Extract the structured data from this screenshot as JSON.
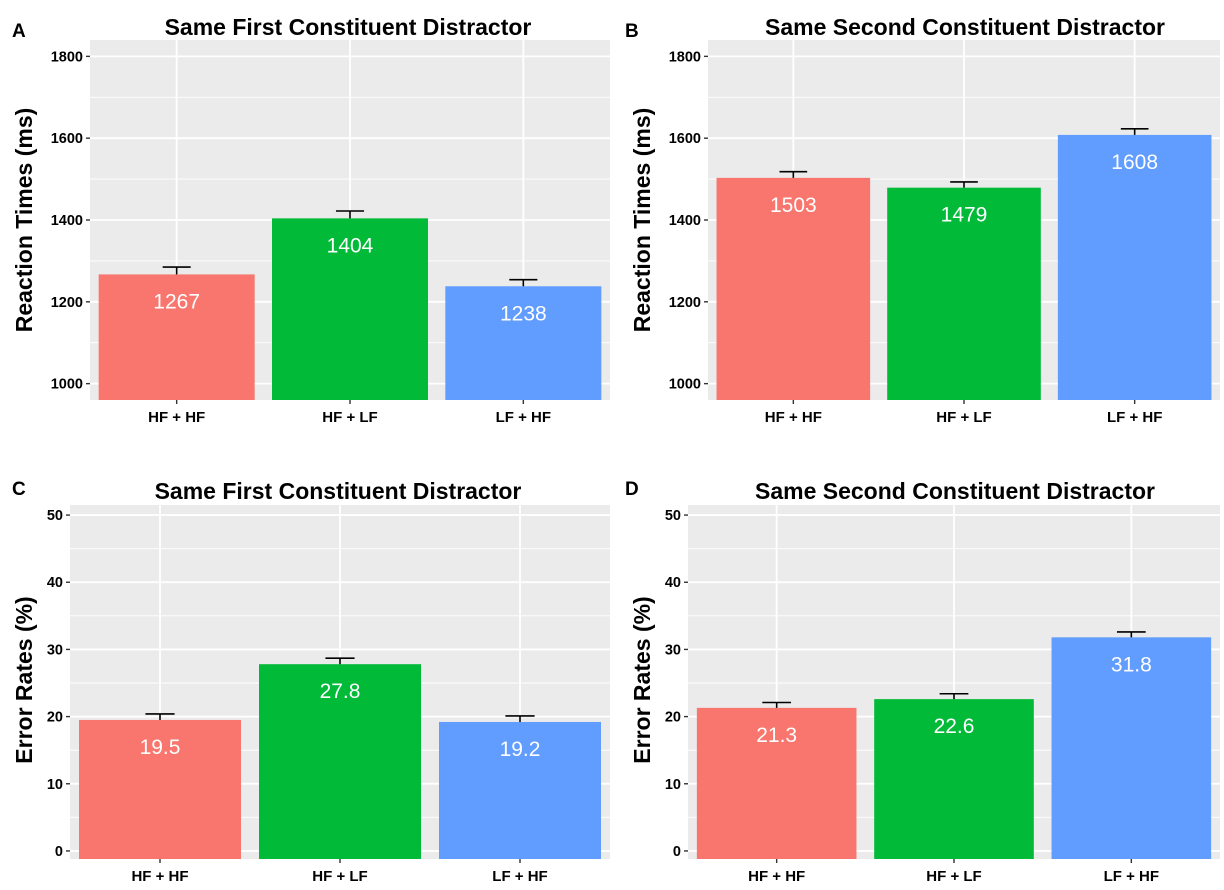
{
  "colors": {
    "panel_background": "#EBEBEB",
    "gridline": "#FFFFFF",
    "error_bar": "#000000",
    "bar_value_text": "#FFFFFF",
    "categories": [
      "#F8766D",
      "#00BA38",
      "#619CFF"
    ]
  },
  "chart_data": [
    {
      "panel": "A",
      "type": "bar",
      "title": "Same First Constituent Distractor",
      "xlabel": "",
      "ylabel": "Reaction Times (ms)",
      "categories": [
        "HF + HF",
        "HF + LF",
        "LF + HF"
      ],
      "values": [
        1267,
        1404,
        1238
      ],
      "value_labels": [
        "1267",
        "1404",
        "1238"
      ],
      "error": [
        18,
        18,
        16
      ],
      "ylim": [
        960,
        1840
      ],
      "yticks": [
        1000,
        1200,
        1400,
        1600,
        1800
      ],
      "ytick_labels": [
        "1000",
        "1200",
        "1400",
        "1600",
        "1800"
      ],
      "grid": true,
      "legend": "none"
    },
    {
      "panel": "B",
      "type": "bar",
      "title": "Same Second Constituent Distractor",
      "xlabel": "",
      "ylabel": "Reaction Times (ms)",
      "categories": [
        "HF + HF",
        "HF + LF",
        "LF + HF"
      ],
      "values": [
        1503,
        1479,
        1608
      ],
      "value_labels": [
        "1503",
        "1479",
        "1608"
      ],
      "error": [
        15,
        14,
        15
      ],
      "ylim": [
        960,
        1840
      ],
      "yticks": [
        1000,
        1200,
        1400,
        1600,
        1800
      ],
      "ytick_labels": [
        "1000",
        "1200",
        "1400",
        "1600",
        "1800"
      ],
      "grid": true,
      "legend": "none"
    },
    {
      "panel": "C",
      "type": "bar",
      "title": "Same First Constituent Distractor",
      "xlabel": "",
      "ylabel": "Error Rates (%)",
      "categories": [
        "HF + HF",
        "HF + LF",
        "LF + HF"
      ],
      "values": [
        19.5,
        27.8,
        19.2
      ],
      "value_labels": [
        "19.5",
        "27.8",
        "19.2"
      ],
      "error": [
        0.9,
        0.9,
        0.9
      ],
      "ylim": [
        -1.2,
        51.5
      ],
      "yticks": [
        0,
        10,
        20,
        30,
        40,
        50
      ],
      "ytick_labels": [
        "0",
        "10",
        "20",
        "30",
        "40",
        "50"
      ],
      "grid": true,
      "legend": "none"
    },
    {
      "panel": "D",
      "type": "bar",
      "title": "Same Second Constituent Distractor",
      "xlabel": "",
      "ylabel": "Error Rates (%)",
      "categories": [
        "HF + HF",
        "HF + LF",
        "LF + HF"
      ],
      "values": [
        21.3,
        22.6,
        31.8
      ],
      "value_labels": [
        "21.3",
        "22.6",
        "31.8"
      ],
      "error": [
        0.8,
        0.8,
        0.8
      ],
      "ylim": [
        -1.2,
        51.5
      ],
      "yticks": [
        0,
        10,
        20,
        30,
        40,
        50
      ],
      "ytick_labels": [
        "0",
        "10",
        "20",
        "30",
        "40",
        "50"
      ],
      "grid": true,
      "legend": "none"
    }
  ]
}
